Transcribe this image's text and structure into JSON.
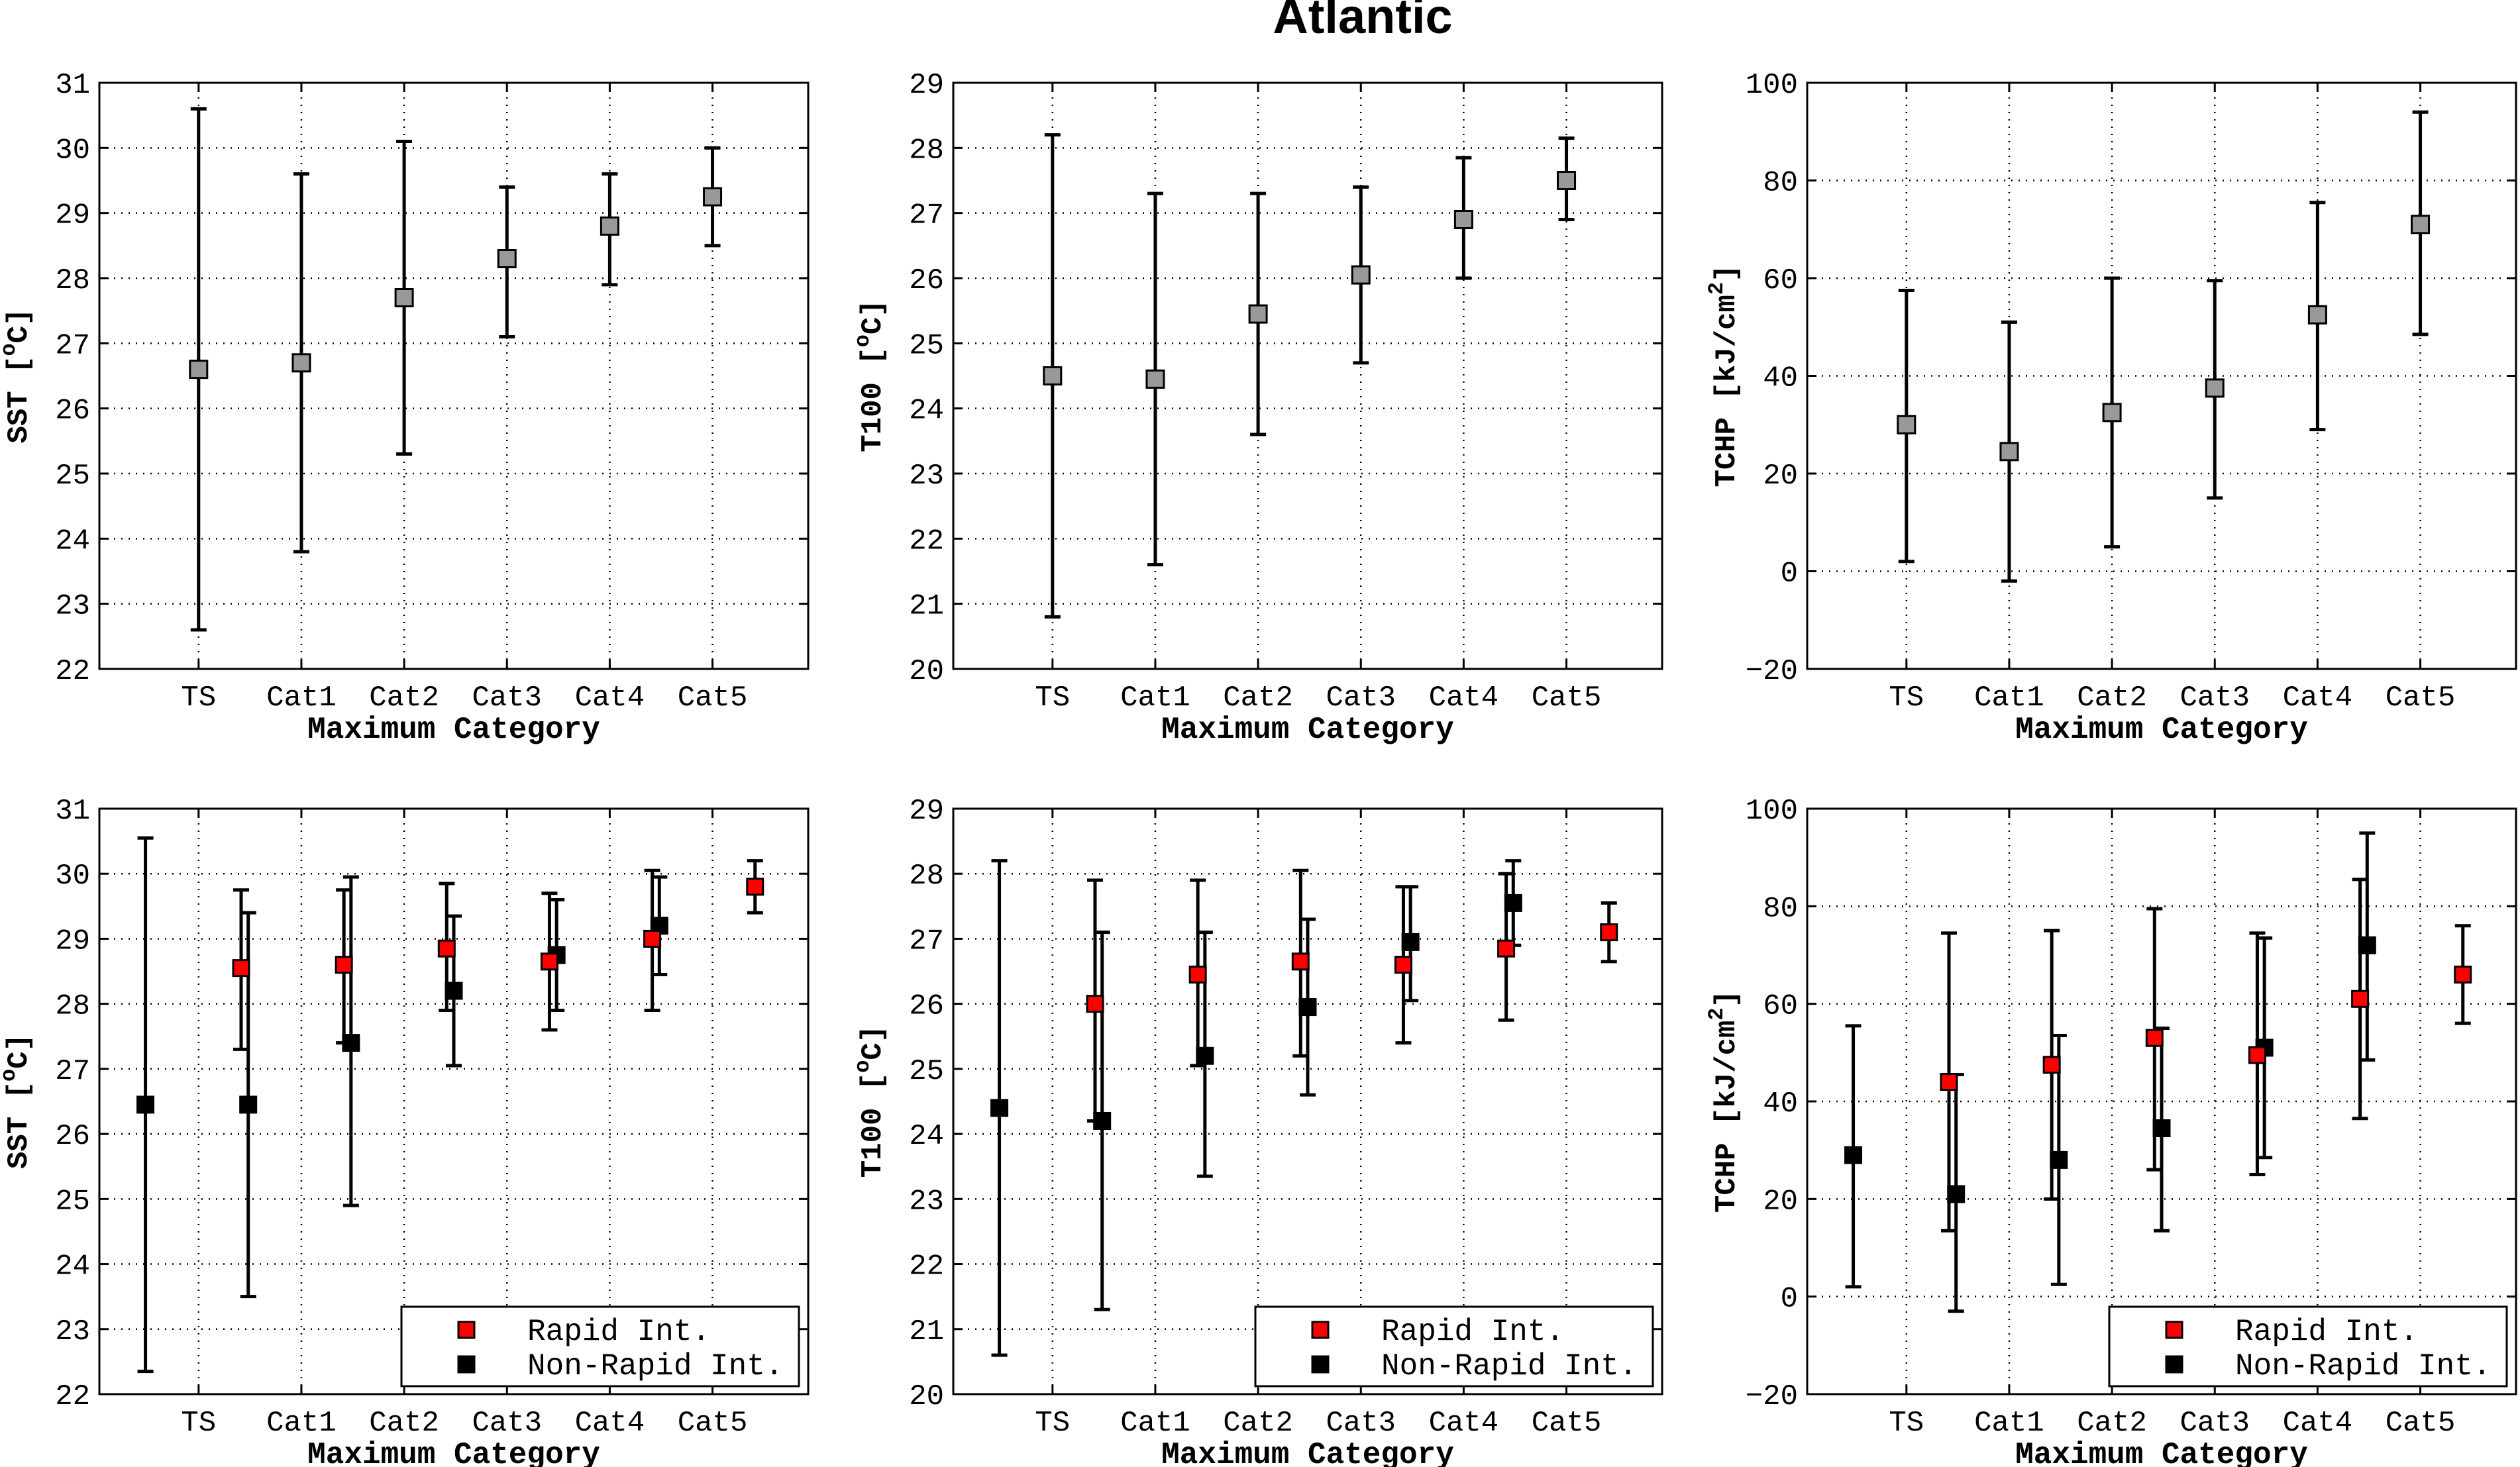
{
  "title": "Atlantic",
  "colors": {
    "rapid": "#ff0000",
    "non_rapid": "#000000",
    "single": "#999999"
  },
  "chart_data": [
    {
      "type": "scatter",
      "panel": "top-left",
      "categories": [
        "TS",
        "Cat1",
        "Cat2",
        "Cat3",
        "Cat4",
        "Cat5"
      ],
      "xlabel": "Maximum Category",
      "ylabel": "SST [°C]",
      "ylabel_parts": {
        "pre": "SST [",
        "sup": "o",
        "post": "C]"
      },
      "ylim": [
        22,
        31
      ],
      "yticks": [
        22,
        23,
        24,
        25,
        26,
        27,
        28,
        29,
        30,
        31
      ],
      "grid": true,
      "series": [
        {
          "style": "gray",
          "values": [
            26.6,
            26.7,
            27.7,
            28.3,
            28.8,
            29.25
          ],
          "low": [
            22.6,
            23.8,
            25.3,
            27.1,
            27.9,
            28.5
          ],
          "high": [
            30.6,
            29.6,
            30.1,
            29.4,
            29.6,
            30.0
          ]
        }
      ]
    },
    {
      "type": "scatter",
      "panel": "top-middle",
      "categories": [
        "TS",
        "Cat1",
        "Cat2",
        "Cat3",
        "Cat4",
        "Cat5"
      ],
      "xlabel": "Maximum Category",
      "ylabel": "T100 [°C]",
      "ylabel_parts": {
        "pre": "T100 [",
        "sup": "o",
        "post": "C]"
      },
      "ylim": [
        20,
        29
      ],
      "yticks": [
        20,
        21,
        22,
        23,
        24,
        25,
        26,
        27,
        28,
        29
      ],
      "grid": true,
      "series": [
        {
          "style": "gray",
          "values": [
            24.5,
            24.45,
            25.45,
            26.05,
            26.9,
            27.5
          ],
          "low": [
            20.8,
            21.6,
            23.6,
            24.7,
            26.0,
            26.9
          ],
          "high": [
            28.2,
            27.3,
            27.3,
            27.4,
            27.85,
            28.15
          ]
        }
      ]
    },
    {
      "type": "scatter",
      "panel": "top-right",
      "categories": [
        "TS",
        "Cat1",
        "Cat2",
        "Cat3",
        "Cat4",
        "Cat5"
      ],
      "xlabel": "Maximum Category",
      "ylabel": "TCHP [kJ/cm2]",
      "ylabel_parts": {
        "pre": "TCHP [kJ/cm",
        "sup": "2",
        "post": "]"
      },
      "ylim": [
        -20,
        100
      ],
      "yticks": [
        -20,
        0,
        20,
        40,
        60,
        80,
        100
      ],
      "grid": true,
      "series": [
        {
          "style": "gray",
          "values": [
            30,
            24.5,
            32.5,
            37.5,
            52.5,
            71
          ],
          "low": [
            2,
            -2,
            5,
            15,
            29,
            48.5
          ],
          "high": [
            57.5,
            51,
            60,
            59.5,
            75.5,
            94
          ]
        }
      ]
    },
    {
      "type": "scatter",
      "panel": "bottom-left",
      "categories": [
        "TS",
        "Cat1",
        "Cat2",
        "Cat3",
        "Cat4",
        "Cat5"
      ],
      "xlabel": "Maximum Category",
      "ylabel": "SST [°C]",
      "ylabel_parts": {
        "pre": "SST [",
        "sup": "o",
        "post": "C]"
      },
      "ylim": [
        22,
        31
      ],
      "yticks": [
        22,
        23,
        24,
        25,
        26,
        27,
        28,
        29,
        30,
        31
      ],
      "grid": true,
      "legend_position": "bottom-right",
      "series": [
        {
          "name": "Non-Rapid Int.",
          "style": "black",
          "values": [
            26.45,
            26.45,
            27.4,
            28.2,
            28.75,
            29.2
          ],
          "low": [
            22.35,
            23.5,
            24.9,
            27.05,
            27.9,
            28.45
          ],
          "high": [
            30.55,
            29.4,
            29.95,
            29.35,
            29.6,
            29.95
          ]
        },
        {
          "name": "Rapid Int.",
          "style": "red",
          "values": [
            28.55,
            28.6,
            28.85,
            28.65,
            29.0,
            29.8
          ],
          "low": [
            27.3,
            27.4,
            27.9,
            27.6,
            27.9,
            29.4
          ],
          "high": [
            29.75,
            29.75,
            29.85,
            29.7,
            30.05,
            30.2
          ]
        }
      ]
    },
    {
      "type": "scatter",
      "panel": "bottom-middle",
      "categories": [
        "TS",
        "Cat1",
        "Cat2",
        "Cat3",
        "Cat4",
        "Cat5"
      ],
      "xlabel": "Maximum Category",
      "ylabel": "T100 [°C]",
      "ylabel_parts": {
        "pre": "T100 [",
        "sup": "o",
        "post": "C]"
      },
      "ylim": [
        20,
        29
      ],
      "yticks": [
        20,
        21,
        22,
        23,
        24,
        25,
        26,
        27,
        28,
        29
      ],
      "grid": true,
      "legend_position": "bottom-right",
      "series": [
        {
          "name": "Non-Rapid Int.",
          "style": "black",
          "values": [
            24.4,
            24.2,
            25.2,
            25.95,
            26.95,
            27.55
          ],
          "low": [
            20.6,
            21.3,
            23.35,
            24.6,
            26.05,
            26.9
          ],
          "high": [
            28.2,
            27.1,
            27.1,
            27.3,
            27.8,
            28.2
          ]
        },
        {
          "name": "Rapid Int.",
          "style": "red",
          "values": [
            26.0,
            26.45,
            26.65,
            26.6,
            26.85,
            27.1
          ],
          "low": [
            24.2,
            25.05,
            25.2,
            25.4,
            25.75,
            26.65
          ],
          "high": [
            27.9,
            27.9,
            28.05,
            27.8,
            28.0,
            27.55
          ]
        }
      ]
    },
    {
      "type": "scatter",
      "panel": "bottom-right",
      "categories": [
        "TS",
        "Cat1",
        "Cat2",
        "Cat3",
        "Cat4",
        "Cat5"
      ],
      "xlabel": "Maximum Category",
      "ylabel": "TCHP [kJ/cm2]",
      "ylabel_parts": {
        "pre": "TCHP [kJ/cm",
        "sup": "2",
        "post": "]"
      },
      "ylim": [
        -20,
        100
      ],
      "yticks": [
        -20,
        0,
        20,
        40,
        60,
        80,
        100
      ],
      "grid": true,
      "legend_position": "bottom-right",
      "series": [
        {
          "name": "Non-Rapid Int.",
          "style": "black",
          "values": [
            29,
            21,
            28,
            34.5,
            51,
            72
          ],
          "low": [
            2,
            -3,
            2.5,
            13.5,
            28.5,
            48.5
          ],
          "high": [
            55.5,
            45.5,
            53.5,
            55,
            73.5,
            95
          ]
        },
        {
          "name": "Rapid Int.",
          "style": "red",
          "values": [
            44,
            47.5,
            53,
            49.5,
            61,
            66
          ],
          "low": [
            13.5,
            20,
            26,
            25,
            36.5,
            56
          ],
          "high": [
            74.5,
            75,
            79.5,
            74.5,
            85.5,
            76
          ]
        }
      ]
    }
  ],
  "legend_entries": [
    "Rapid Int.",
    "Non-Rapid Int."
  ]
}
